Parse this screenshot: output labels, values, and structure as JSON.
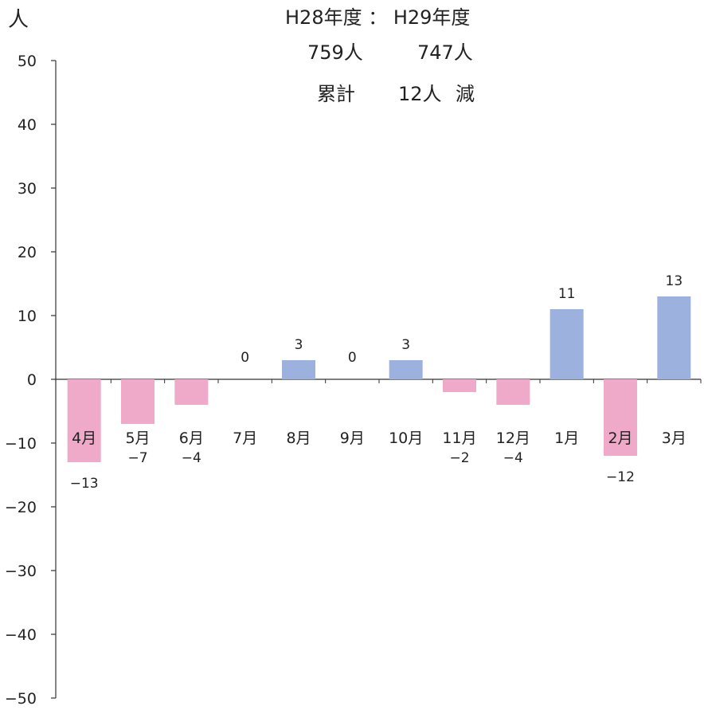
{
  "header": {
    "unit_label": "人",
    "compare_line": "H28年度 ： H29年度",
    "prev_total": "759人",
    "curr_total": "747人",
    "cumulative_label": "累計",
    "cumulative_value": "12人",
    "cumulative_change": "減"
  },
  "colors": {
    "positive": "#9db1de",
    "negative": "#eeaac8",
    "axis": "#333333"
  },
  "chart_data": {
    "type": "bar",
    "title": "",
    "xlabel": "",
    "ylabel": "人",
    "ylim": [
      -50,
      50
    ],
    "yticks": [
      50,
      40,
      30,
      20,
      10,
      0,
      -10,
      -20,
      -30,
      -40,
      -50
    ],
    "grid": false,
    "categories": [
      "4月",
      "5月",
      "6月",
      "7月",
      "8月",
      "9月",
      "10月",
      "11月",
      "12月",
      "1月",
      "2月",
      "3月"
    ],
    "values": [
      -13,
      -7,
      -4,
      0,
      3,
      0,
      3,
      -2,
      -4,
      11,
      -12,
      13
    ],
    "value_labels": [
      "-13",
      "-7",
      "-4",
      "0",
      "3",
      "0",
      "3",
      "-2",
      "-4",
      "11",
      "-12",
      "13"
    ]
  }
}
